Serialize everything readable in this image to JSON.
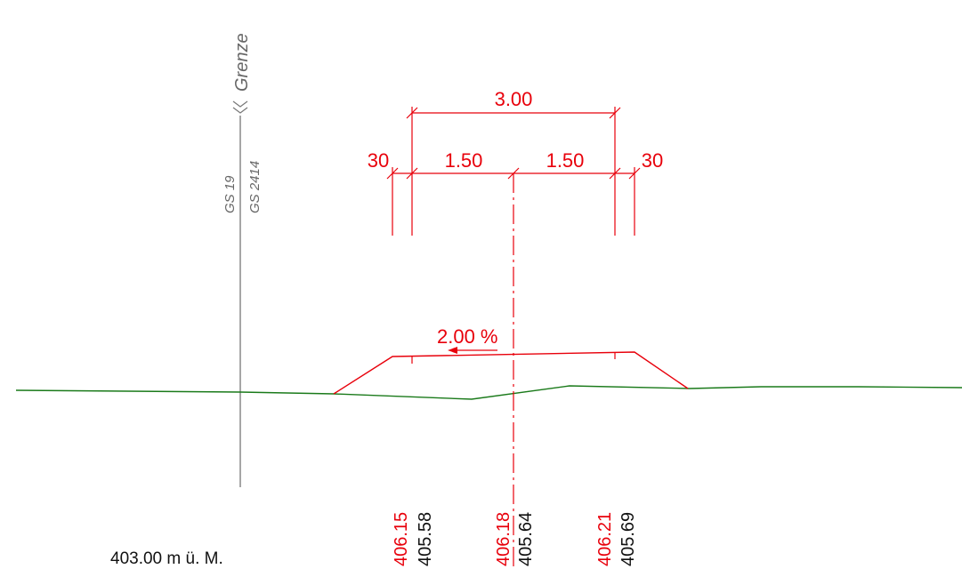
{
  "boundary": {
    "label": "Grenze",
    "parcel_top": "GS 19",
    "parcel_bottom": "GS 2414"
  },
  "dimensions": {
    "total": "3.00",
    "left_half": "1.50",
    "right_half": "1.50",
    "left_shoulder": "30",
    "right_shoulder": "30"
  },
  "slope": {
    "label": "2.00 %"
  },
  "elevations": {
    "left_design": "406.15",
    "left_existing": "405.58",
    "center_design": "406.18",
    "center_existing": "405.64",
    "right_design": "406.21",
    "right_existing": "405.69"
  },
  "datum": {
    "label": "403.00 m ü. M."
  },
  "colors": {
    "design": "#e8000b",
    "terrain": "#1a7a1a",
    "boundary": "#777777",
    "existing_text": "#111111"
  }
}
